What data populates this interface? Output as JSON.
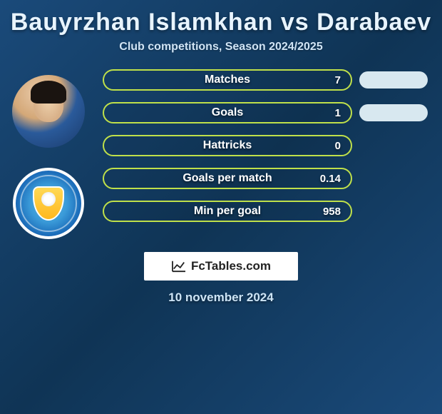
{
  "title": "Bauyrzhan Islamkhan vs Darabaev",
  "subtitle": "Club competitions, Season 2024/2025",
  "date": "10 november 2024",
  "watermark": "FcTables.com",
  "accent_color_p1": "#bfe04a",
  "accent_color_p2": "#d8e8f0",
  "bar_border_color": "#bfe04a",
  "bar_text_color": "#ffffff",
  "stats": [
    {
      "label": "Matches",
      "p1": "7",
      "p2_pill": true
    },
    {
      "label": "Goals",
      "p1": "1",
      "p2_pill": true
    },
    {
      "label": "Hattricks",
      "p1": "0",
      "p2_pill": false
    },
    {
      "label": "Goals per match",
      "p1": "0.14",
      "p2_pill": false
    },
    {
      "label": "Min per goal",
      "p1": "958",
      "p2_pill": false
    }
  ]
}
